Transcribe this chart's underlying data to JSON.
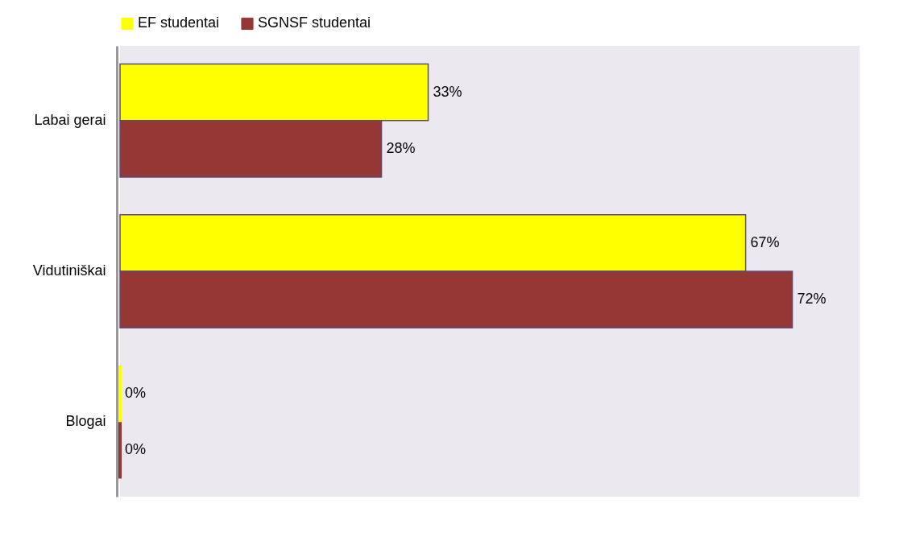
{
  "chart_data": {
    "type": "bar",
    "orientation": "horizontal",
    "categories": [
      "Labai gerai",
      "Vidutiniškai",
      "Blogai"
    ],
    "series": [
      {
        "name": "EF studentai",
        "color": "#ffff00",
        "values": [
          33,
          67,
          0
        ],
        "value_labels": [
          "33%",
          "67%",
          "0%"
        ]
      },
      {
        "name": "SGNSF studentai",
        "color": "#953735",
        "values": [
          28,
          72,
          0
        ],
        "value_labels": [
          "28%",
          "72%",
          "0%"
        ]
      }
    ],
    "legend": "top",
    "grid": false
  }
}
